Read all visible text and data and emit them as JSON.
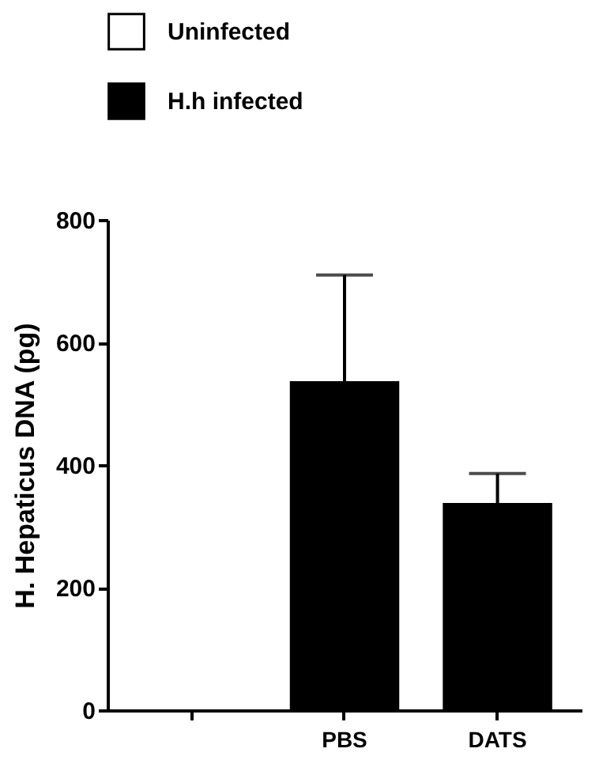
{
  "chart_data": {
    "type": "bar",
    "ylabel": "H. Hepaticus DNA (pg)",
    "categories": [
      null,
      "PBS",
      "DATS"
    ],
    "series": [
      {
        "name": "Uninfected",
        "color": "#ffffff",
        "values": [
          null,
          null,
          null
        ]
      },
      {
        "name": "H.h infected",
        "color": "#000000",
        "values": [
          null,
          535,
          336
        ],
        "errors": [
          null,
          175,
          50
        ]
      }
    ],
    "ylim": [
      0,
      800
    ],
    "yticks": [
      0,
      200,
      400,
      600,
      800
    ],
    "grid": false,
    "legend": "top left"
  }
}
